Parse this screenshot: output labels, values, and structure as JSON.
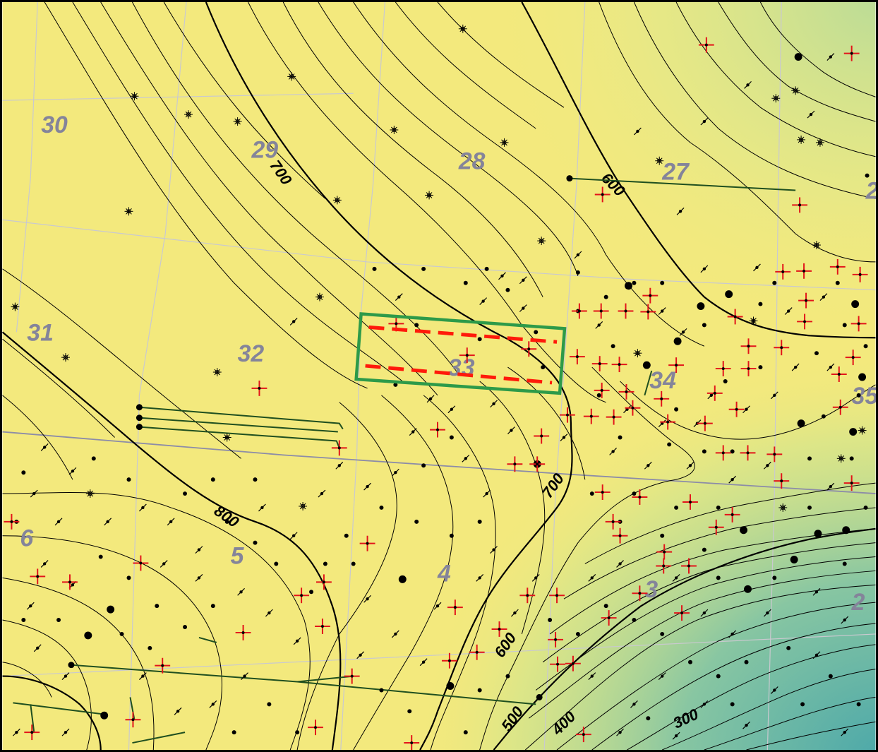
{
  "map": {
    "colors": {
      "high": "#f6ec82",
      "mid": "#d2e58c",
      "low": "#4ca9ab",
      "contour": "#000000",
      "grid": "#c4c4cc",
      "township_line": "#8c8ca8",
      "section_label": "#84849a",
      "well_path": "#1f4f1f",
      "producing_well": "#e2141a",
      "highlight_box": "#2d9a49",
      "highlight_dash": "#ff1a0a"
    },
    "sections": [
      "30",
      "29",
      "28",
      "27",
      "2",
      "31",
      "32",
      "33",
      "34",
      "35",
      "6",
      "5",
      "4",
      "3",
      "2"
    ],
    "contour_labels": [
      "700",
      "600",
      "700",
      "800",
      "600",
      "500",
      "400",
      "300"
    ],
    "contour_interval": 20,
    "symbols": [
      "well-dot-icon",
      "gas-well-icon",
      "dry-hole-icon",
      "producing-well-icon"
    ]
  }
}
